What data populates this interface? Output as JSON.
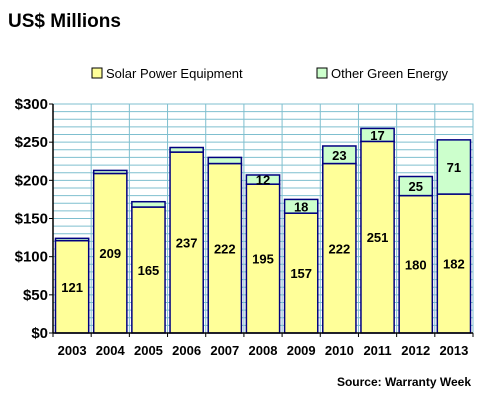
{
  "chart_data": {
    "type": "bar",
    "stacked": true,
    "title": "US$ Millions",
    "source": "Source: Warranty Week",
    "categories": [
      "2003",
      "2004",
      "2005",
      "2006",
      "2007",
      "2008",
      "2009",
      "2010",
      "2011",
      "2012",
      "2013"
    ],
    "series": [
      {
        "name": "Solar Power Equipment",
        "color": "#ffff99",
        "values": [
          121,
          209,
          165,
          237,
          222,
          195,
          157,
          222,
          251,
          180,
          182
        ],
        "labels": [
          "121",
          "209",
          "165",
          "237",
          "222",
          "195",
          "157",
          "222",
          "251",
          "180",
          "182"
        ]
      },
      {
        "name": "Other Green Energy",
        "color": "#ccffcc",
        "values": [
          3,
          4,
          7,
          6,
          8,
          12,
          18,
          23,
          17,
          25,
          71
        ],
        "labels": [
          "",
          "",
          "",
          "",
          "",
          "12",
          "18",
          "23",
          "17",
          "25",
          "71"
        ]
      }
    ],
    "y_ticks": [
      "$0",
      "$50",
      "$100",
      "$150",
      "$200",
      "$250",
      "$300"
    ],
    "ylim": [
      0,
      300
    ],
    "y_step": 10,
    "grid": true,
    "legend_position": "top",
    "colors": {
      "plot_background": "#ffffff",
      "grid": "#7fbfcf",
      "bar_border": "#000080",
      "axis": "#000000"
    }
  }
}
